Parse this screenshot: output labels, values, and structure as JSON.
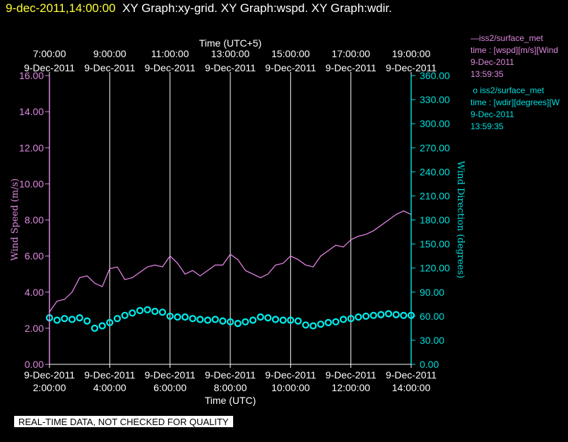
{
  "header": {
    "datetime": "9-dec-2011,14:00:00",
    "titles": "XY Graph:xy-grid.  XY Graph:wspd.  XY Graph:wdir."
  },
  "footer": {
    "notice": "REAL-TIME DATA, NOT CHECKED FOR QUALITY"
  },
  "legend": [
    {
      "symbol": "—",
      "name": "iss2/surface_met",
      "variable": "time : [wspd][m/s][Wind",
      "date": "9-Dec-2011",
      "time": "13:59:35"
    },
    {
      "symbol": "o",
      "name": "iss2/surface_met",
      "variable": "time : [wdir][degrees][W",
      "date": "9-Dec-2011",
      "time": "13:59:35"
    }
  ],
  "colors": {
    "wspd": "#ee88ee",
    "wdir": "#00eeee",
    "axis_left": "#dd88dd",
    "axis_right": "#00dddd",
    "grid": "#ffffff",
    "header_date": "#ffff33"
  },
  "chart_data": {
    "type": "line",
    "top_axis_label": "Time (UTC+5)",
    "top_ticks": [
      {
        "time": "7:00:00",
        "date": "9-Dec-2011"
      },
      {
        "time": "9:00:00",
        "date": "9-Dec-2011"
      },
      {
        "time": "11:00:00",
        "date": "9-Dec-2011"
      },
      {
        "time": "13:00:00",
        "date": "9-Dec-2011"
      },
      {
        "time": "15:00:00",
        "date": "9-Dec-2011"
      },
      {
        "time": "17:00:00",
        "date": "9-Dec-2011"
      },
      {
        "time": "19:00:00",
        "date": "9-Dec-2011"
      }
    ],
    "xlabel": "Time (UTC)",
    "bottom_ticks": [
      {
        "date": "9-Dec-2011",
        "time": "2:00:00"
      },
      {
        "date": "9-Dec-2011",
        "time": "4:00:00"
      },
      {
        "date": "9-Dec-2011",
        "time": "6:00:00"
      },
      {
        "date": "9-Dec-2011",
        "time": "8:00:00"
      },
      {
        "date": "9-Dec-2011",
        "time": "10:00:00"
      },
      {
        "date": "9-Dec-2011",
        "time": "12:00:00"
      },
      {
        "date": "9-Dec-2011",
        "time": "14:00:00"
      }
    ],
    "xlim": [
      "2011-12-09T02:00",
      "2011-12-09T14:00"
    ],
    "ylabel_left": "Wind Speed (m/s)",
    "ylim_left": [
      0,
      16
    ],
    "yticks_left": [
      "0.00",
      "2.00",
      "4.00",
      "6.00",
      "8.00",
      "10.00",
      "12.00",
      "14.00",
      "16.00"
    ],
    "ylabel_right": "Wind Direction (degrees)",
    "ylim_right": [
      0,
      360
    ],
    "yticks_right": [
      "0.00",
      "30.00",
      "60.00",
      "90.00",
      "120.00",
      "150.00",
      "180.00",
      "210.00",
      "240.00",
      "270.00",
      "300.00",
      "330.00",
      "360.00"
    ],
    "grid": "vertical",
    "series": [
      {
        "name": "iss2/surface_met",
        "variable": "wspd",
        "style": "line",
        "axis": "left",
        "x": [
          "02:00",
          "02:15",
          "02:30",
          "02:45",
          "03:00",
          "03:15",
          "03:30",
          "03:45",
          "04:00",
          "04:15",
          "04:30",
          "04:45",
          "05:00",
          "05:15",
          "05:30",
          "05:45",
          "06:00",
          "06:15",
          "06:30",
          "06:45",
          "07:00",
          "07:15",
          "07:30",
          "07:45",
          "08:00",
          "08:15",
          "08:30",
          "08:45",
          "09:00",
          "09:15",
          "09:30",
          "09:45",
          "10:00",
          "10:15",
          "10:30",
          "10:45",
          "11:00",
          "11:15",
          "11:30",
          "11:45",
          "12:00",
          "12:15",
          "12:30",
          "12:45",
          "13:00",
          "13:15",
          "13:30",
          "13:45",
          "14:00"
        ],
        "y": [
          2.9,
          3.5,
          3.6,
          4.0,
          4.8,
          4.9,
          4.5,
          4.3,
          5.3,
          5.4,
          4.7,
          4.8,
          5.1,
          5.4,
          5.5,
          5.4,
          6.0,
          5.6,
          5.0,
          5.2,
          4.9,
          5.2,
          5.5,
          5.5,
          6.1,
          5.8,
          5.2,
          5.0,
          4.8,
          5.0,
          5.5,
          5.6,
          6.0,
          5.8,
          5.5,
          5.4,
          6.0,
          6.3,
          6.6,
          6.5,
          6.9,
          7.1,
          7.2,
          7.4,
          7.7,
          8.0,
          8.3,
          8.5,
          8.3
        ]
      },
      {
        "name": "iss2/surface_met",
        "variable": "wdir",
        "style": "circles",
        "axis": "right",
        "x": [
          "02:00",
          "02:15",
          "02:30",
          "02:45",
          "03:00",
          "03:15",
          "03:30",
          "03:45",
          "04:00",
          "04:15",
          "04:30",
          "04:45",
          "05:00",
          "05:15",
          "05:30",
          "05:45",
          "06:00",
          "06:15",
          "06:30",
          "06:45",
          "07:00",
          "07:15",
          "07:30",
          "07:45",
          "08:00",
          "08:15",
          "08:30",
          "08:45",
          "09:00",
          "09:15",
          "09:30",
          "09:45",
          "10:00",
          "10:15",
          "10:30",
          "10:45",
          "11:00",
          "11:15",
          "11:30",
          "11:45",
          "12:00",
          "12:15",
          "12:30",
          "12:45",
          "13:00",
          "13:15",
          "13:30",
          "13:45",
          "14:00"
        ],
        "y": [
          58,
          55,
          57,
          56,
          58,
          54,
          45,
          48,
          52,
          57,
          61,
          64,
          67,
          68,
          66,
          65,
          60,
          59,
          59,
          57,
          56,
          55,
          56,
          54,
          53,
          51,
          53,
          55,
          59,
          58,
          56,
          55,
          55,
          54,
          49,
          48,
          50,
          52,
          53,
          56,
          57,
          59,
          60,
          61,
          62,
          63,
          62,
          61,
          61
        ]
      }
    ]
  }
}
